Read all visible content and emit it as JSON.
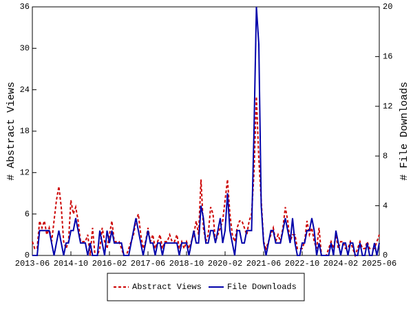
{
  "chart_data": {
    "type": "line",
    "categories": [
      "2013-06",
      null,
      null,
      null,
      null,
      null,
      null,
      null,
      null,
      null,
      null,
      null,
      null,
      null,
      null,
      null,
      "2014-10",
      null,
      null,
      null,
      null,
      null,
      null,
      null,
      null,
      null,
      null,
      null,
      null,
      null,
      null,
      null,
      "2016-02",
      null,
      null,
      null,
      null,
      null,
      null,
      null,
      null,
      null,
      null,
      null,
      null,
      null,
      null,
      null,
      "2017-06",
      null,
      null,
      null,
      null,
      null,
      null,
      null,
      null,
      null,
      null,
      null,
      null,
      null,
      null,
      null,
      "2018-10",
      null,
      null,
      null,
      null,
      null,
      null,
      null,
      null,
      null,
      null,
      null,
      null,
      null,
      null,
      null,
      "2020-02",
      null,
      null,
      null,
      null,
      null,
      null,
      null,
      null,
      null,
      null,
      null,
      null,
      null,
      null,
      null,
      "2021-06",
      null,
      null,
      null,
      null,
      null,
      null,
      null,
      null,
      null,
      null,
      null,
      null,
      null,
      null,
      null,
      "2022-10",
      null,
      null,
      null,
      null,
      null,
      null,
      null,
      null,
      null,
      null,
      null,
      null,
      null,
      null,
      null,
      "2024-02",
      null,
      null,
      null,
      null,
      null,
      null,
      null,
      null,
      null,
      null,
      null,
      null,
      null,
      null,
      null,
      "2025-06"
    ],
    "series": [
      {
        "name": "Abstract Views",
        "color": "#cc0000",
        "dashed": true,
        "values": [
          2,
          1,
          1,
          5,
          4,
          5,
          3,
          4,
          2,
          5,
          8,
          10,
          7,
          2,
          1,
          2,
          8,
          6,
          7,
          5,
          2,
          2,
          2,
          3,
          0,
          4,
          0,
          0,
          1,
          4,
          2,
          1,
          3,
          5,
          2,
          2,
          2,
          1,
          0,
          0,
          1,
          2,
          3,
          5,
          6,
          3,
          1,
          2,
          4,
          2,
          3,
          1,
          2,
          3,
          1,
          2,
          2,
          3,
          2,
          2,
          3,
          1,
          2,
          1,
          2,
          1,
          2,
          3,
          5,
          3,
          11,
          4,
          2,
          3,
          7,
          6,
          2,
          3,
          4,
          5,
          8,
          11,
          6,
          3,
          2,
          4,
          5,
          5,
          4,
          3,
          5,
          6,
          12,
          23,
          14,
          8,
          2,
          1,
          2,
          3,
          4,
          2,
          3,
          2,
          4,
          7,
          5,
          2,
          3,
          3,
          1,
          1,
          1,
          2,
          5,
          3,
          4,
          2,
          1,
          4,
          0,
          0,
          0,
          1,
          2,
          1,
          3,
          1,
          2,
          2,
          1,
          1,
          2,
          1,
          0,
          1,
          2,
          1,
          1,
          2,
          1,
          1,
          1,
          2,
          3
        ]
      },
      {
        "name": "File Downloads",
        "color": "#0000aa",
        "axis": "y2",
        "values": [
          0,
          0,
          0,
          2,
          2,
          2,
          2,
          2,
          1,
          0,
          1,
          2,
          1,
          0,
          1,
          1,
          2,
          2,
          3,
          2,
          1,
          1,
          1,
          0,
          1,
          0,
          0,
          0,
          2,
          1,
          0,
          2,
          1,
          2,
          1,
          1,
          1,
          1,
          0,
          0,
          0,
          1,
          2,
          3,
          2,
          1,
          0,
          1,
          2,
          1,
          1,
          0,
          1,
          1,
          0,
          1,
          1,
          1,
          1,
          1,
          1,
          0,
          1,
          1,
          1,
          0,
          1,
          2,
          1,
          1,
          4,
          3,
          1,
          1,
          2,
          2,
          1,
          2,
          3,
          1,
          2,
          5,
          2,
          1,
          0,
          2,
          2,
          1,
          1,
          2,
          2,
          2,
          10,
          20,
          17,
          4,
          1,
          0,
          1,
          2,
          2,
          1,
          1,
          1,
          2,
          3,
          2,
          1,
          3,
          1,
          0,
          0,
          1,
          1,
          2,
          2,
          3,
          2,
          0,
          1,
          0,
          0,
          0,
          0,
          1,
          0,
          2,
          1,
          0,
          1,
          1,
          0,
          1,
          1,
          0,
          0,
          1,
          0,
          0,
          1,
          0,
          0,
          1,
          0,
          1
        ]
      }
    ],
    "ylabel": "# Abstract Views",
    "y2label": "# File Downloads",
    "ylim": [
      0,
      36
    ],
    "yticks": [
      0,
      6,
      12,
      18,
      24,
      30,
      36
    ],
    "y2lim": [
      0,
      20
    ],
    "y2ticks": [
      0,
      4,
      8,
      12,
      16,
      20
    ],
    "legend": "bottom"
  }
}
